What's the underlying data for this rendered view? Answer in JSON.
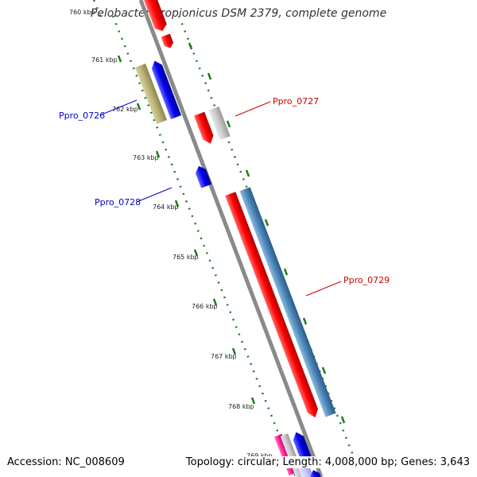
{
  "title": "Pelobacter propionicus DSM 2379, complete genome",
  "footer": {
    "accession": "Accession: NC_008609",
    "summary": "Topology: circular; Length: 4,008,000 bp; Genes: 3,643"
  },
  "ruler": {
    "unit": "kbp",
    "ticks": [
      "760 kbp",
      "761 kbp",
      "762 kbp",
      "763 kbp",
      "764 kbp",
      "765 kbp",
      "766 kbp",
      "767 kbp",
      "768 kbp",
      "769 kbp"
    ]
  },
  "colors": {
    "backbone": "#8a8a8a",
    "ruler_dots": "#1f7a1f",
    "forward_red": "#ff0000",
    "reverse_blue": "#0000ee",
    "steelblue": "#4a86b8",
    "olive": "#b8b070",
    "grey": "#c8c8c8",
    "magenta": "#ff1493",
    "light_blue": "#c8c8ff"
  },
  "genes": [
    {
      "label": "Ppro_0726",
      "color": "#0000ee",
      "strand": "reverse"
    },
    {
      "label": "Ppro_0727",
      "color": "#ff0000",
      "strand": "forward"
    },
    {
      "label": "Ppro_0728",
      "color": "#0000ee",
      "strand": "reverse"
    },
    {
      "label": "Ppro_0729",
      "color": "#ff0000",
      "strand": "forward"
    }
  ]
}
